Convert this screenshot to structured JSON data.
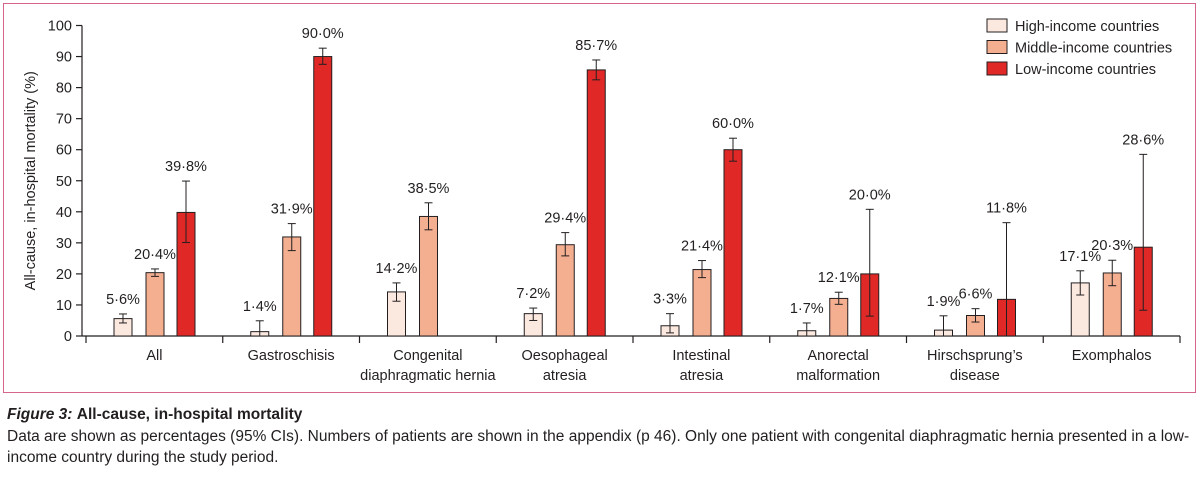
{
  "figure": {
    "caption_label": "Figure 3:",
    "caption_title": "All-cause, in-hospital mortality",
    "caption_text": "Data are shown as percentages (95% CIs). Numbers of patients are shown in the appendix (p 46). Only one patient with congenital diaphragmatic hernia presented in a low-income country during the study period."
  },
  "chart_data": {
    "type": "bar",
    "ylabel": "All-cause, in-hospital mortality (%)",
    "xlabel": "",
    "ylim": [
      0,
      100
    ],
    "yticks": [
      0,
      10,
      20,
      30,
      40,
      50,
      60,
      70,
      80,
      90,
      100
    ],
    "grid": false,
    "legend_position": "top-right",
    "categories": [
      [
        "All"
      ],
      [
        "Gastroschisis"
      ],
      [
        "Congenital",
        "diaphragmatic hernia"
      ],
      [
        "Oesophageal",
        "atresia"
      ],
      [
        "Intestinal",
        "atresia"
      ],
      [
        "Anorectal",
        "malformation"
      ],
      [
        "Hirschsprung’s",
        "disease"
      ],
      [
        "Exomphalos"
      ]
    ],
    "series": [
      {
        "name": "High-income countries",
        "color": "#fbe8df",
        "values": [
          5.6,
          1.4,
          14.2,
          7.2,
          3.3,
          1.7,
          1.9,
          17.1
        ],
        "labels": [
          "5·6%",
          "1·4%",
          "14·2%",
          "7·2%",
          "3·3%",
          "1·7%",
          "1·9%",
          "17·1%"
        ],
        "ci_low": [
          4.2,
          0.0,
          11.2,
          5.0,
          1.0,
          0.0,
          0.0,
          13.2
        ],
        "ci_high": [
          7.1,
          4.9,
          17.1,
          9.0,
          7.2,
          4.2,
          6.5,
          21.0
        ]
      },
      {
        "name": "Middle-income countries",
        "color": "#f4af91",
        "values": [
          20.4,
          31.9,
          38.5,
          29.4,
          21.4,
          12.1,
          6.6,
          20.3
        ],
        "labels": [
          "20·4%",
          "31·9%",
          "38·5%",
          "29·4%",
          "21·4%",
          "12·1%",
          "6·6%",
          "20·3%"
        ],
        "ci_low": [
          19.2,
          27.5,
          34.2,
          25.8,
          18.8,
          10.2,
          4.5,
          16.2
        ],
        "ci_high": [
          21.6,
          36.2,
          42.9,
          33.3,
          24.3,
          14.1,
          8.8,
          24.4
        ]
      },
      {
        "name": "Low-income countries",
        "color": "#e02826",
        "values": [
          39.8,
          90.0,
          null,
          85.7,
          60.0,
          20.0,
          11.8,
          28.6
        ],
        "labels": [
          "39·8%",
          "90·0%",
          "",
          "85·7%",
          "60·0%",
          "20·0%",
          "11·8%",
          "28·6%"
        ],
        "ci_low": [
          30.1,
          87.5,
          null,
          82.5,
          56.3,
          6.4,
          0.0,
          8.3
        ],
        "ci_high": [
          49.9,
          92.7,
          null,
          88.9,
          63.7,
          40.8,
          36.5,
          58.5
        ]
      }
    ]
  }
}
